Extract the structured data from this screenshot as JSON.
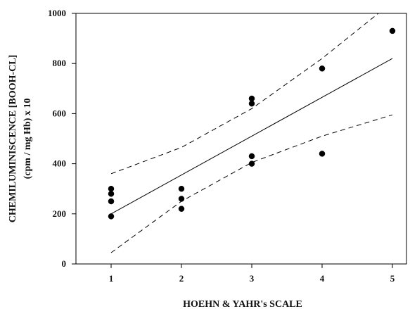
{
  "chart_data": {
    "type": "scatter",
    "title": "",
    "xlabel": "HOEHN & YAHR's SCALE",
    "ylabel_lines": [
      "CHEMILUMINISCENCE [BOOH-CL]",
      "(cpm / mg Hb) x 10"
    ],
    "xlim": [
      0.5,
      5.2
    ],
    "ylim": [
      0,
      1000
    ],
    "x_ticks": [
      1,
      2,
      3,
      4,
      5
    ],
    "x_tick_labels": [
      "1",
      "2",
      "3",
      "4",
      "5"
    ],
    "y_ticks": [
      0,
      200,
      400,
      600,
      800,
      1000
    ],
    "y_tick_labels": [
      "0",
      "200",
      "400",
      "600",
      "800",
      "1000"
    ],
    "grid": false,
    "legend": "none",
    "points": [
      {
        "x": 1,
        "y": 300
      },
      {
        "x": 1,
        "y": 280
      },
      {
        "x": 1,
        "y": 250
      },
      {
        "x": 1,
        "y": 190
      },
      {
        "x": 2,
        "y": 300
      },
      {
        "x": 2,
        "y": 260
      },
      {
        "x": 2,
        "y": 220
      },
      {
        "x": 3,
        "y": 660
      },
      {
        "x": 3,
        "y": 640
      },
      {
        "x": 3,
        "y": 430
      },
      {
        "x": 3,
        "y": 400
      },
      {
        "x": 4,
        "y": 780
      },
      {
        "x": 4,
        "y": 440
      },
      {
        "x": 5,
        "y": 930
      }
    ],
    "regression_line": {
      "x": [
        1,
        5
      ],
      "y": [
        200,
        820
      ]
    },
    "confidence_bands": {
      "upper": {
        "x": [
          1,
          2,
          3,
          4,
          4.8
        ],
        "y": [
          360,
          465,
          620,
          820,
          1000
        ]
      },
      "lower": {
        "x": [
          1,
          2,
          3,
          4,
          5
        ],
        "y": [
          45,
          250,
          405,
          510,
          595
        ]
      }
    },
    "colors": {
      "marker": "#000000",
      "line": "#000000",
      "axes": "#000000",
      "text": "#111111"
    }
  }
}
